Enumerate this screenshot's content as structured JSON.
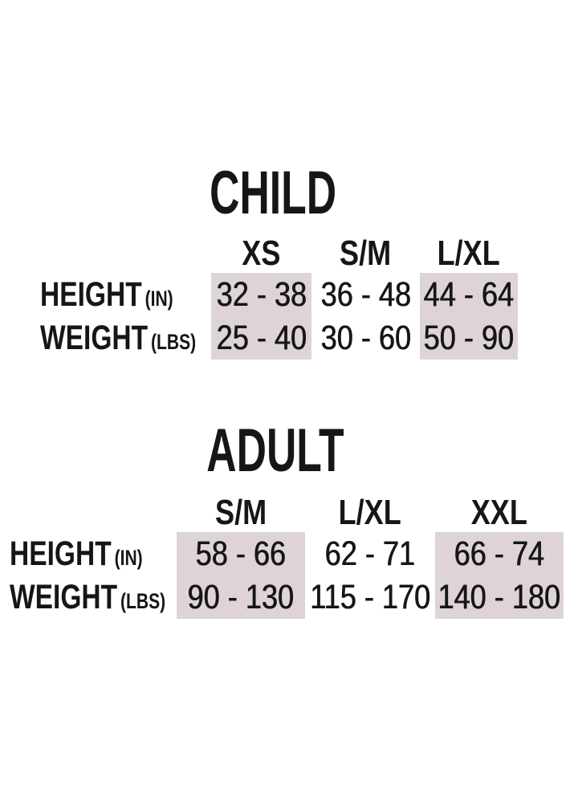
{
  "colors": {
    "background": "#ffffff",
    "text": "#161616",
    "highlight": "#ddd3d9"
  },
  "chart_data": [
    {
      "type": "table",
      "title": "CHILD",
      "column_headers": [
        "XS",
        "S/M",
        "L/XL"
      ],
      "highlighted_columns": [
        "XS",
        "L/XL"
      ],
      "rows": [
        {
          "label": "HEIGHT",
          "unit": "(IN)",
          "values": [
            "32 - 38",
            "36 - 48",
            "44 - 64"
          ]
        },
        {
          "label": "WEIGHT",
          "unit": "(LBS)",
          "values": [
            "25 - 40",
            "30 - 60",
            "50 - 90"
          ]
        }
      ]
    },
    {
      "type": "table",
      "title": "ADULT",
      "column_headers": [
        "S/M",
        "L/XL",
        "XXL"
      ],
      "highlighted_columns": [
        "S/M",
        "XXL"
      ],
      "rows": [
        {
          "label": "HEIGHT",
          "unit": "(IN)",
          "values": [
            "58 - 66",
            "62 - 71",
            "66 - 74"
          ]
        },
        {
          "label": "WEIGHT",
          "unit": "(LBS)",
          "values": [
            "90 - 130",
            "115 - 170",
            "140 - 180"
          ]
        }
      ]
    }
  ]
}
